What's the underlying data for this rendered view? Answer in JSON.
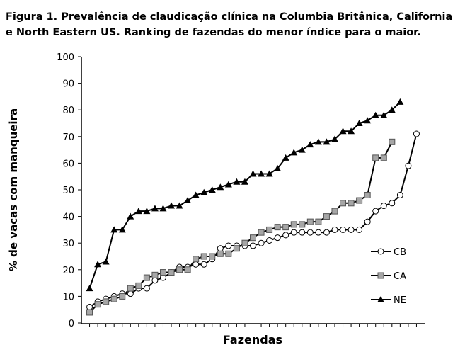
{
  "chart_data": {
    "type": "line",
    "title_lines": [
      "Figura 1. Prevalência de claudicação clínica na Columbia Britânica, California",
      "e North Eastern US. Ranking de fazendas do menor índice para o maior."
    ],
    "ylabel": "% de vacas com manqueira",
    "xlabel": "Fazendas",
    "x": [
      1,
      2,
      3,
      4,
      5,
      6,
      7,
      8,
      9,
      10,
      11,
      12,
      13,
      14,
      15,
      16,
      17,
      18,
      19,
      20,
      21,
      22,
      23,
      24,
      25,
      26,
      27,
      28,
      29,
      30,
      31,
      32,
      33,
      34,
      35,
      36,
      37,
      38,
      39,
      40,
      41
    ],
    "xlim": [
      0,
      42
    ],
    "ylim": [
      0,
      100
    ],
    "yticks": [
      0,
      10,
      20,
      30,
      40,
      50,
      60,
      70,
      80,
      90,
      100
    ],
    "series": [
      {
        "name": "CB",
        "color": "#ffffff",
        "marker": "circle",
        "values": [
          6,
          8,
          9,
          10,
          11,
          11,
          13,
          13,
          16,
          17,
          19,
          21,
          21,
          22,
          22,
          24,
          28,
          29,
          29,
          29,
          29,
          30,
          31,
          32,
          33,
          34,
          34,
          34,
          34,
          34,
          35,
          35,
          35,
          35,
          38,
          42,
          44,
          45,
          48,
          59,
          71
        ]
      },
      {
        "name": "CA",
        "color": "#a6a6a6",
        "marker": "square",
        "values": [
          4,
          7,
          8,
          9,
          10,
          13,
          14,
          17,
          18,
          19,
          19,
          20,
          20,
          24,
          25,
          25,
          26,
          26,
          28,
          30,
          32,
          34,
          35,
          36,
          36,
          37,
          37,
          38,
          38,
          40,
          42,
          45,
          45,
          46,
          48,
          62,
          62,
          68,
          null,
          null,
          null
        ]
      },
      {
        "name": "NE",
        "color": "#000000",
        "marker": "triangle",
        "values": [
          13,
          22,
          23,
          35,
          35,
          40,
          42,
          42,
          43,
          43,
          44,
          44,
          46,
          48,
          49,
          50,
          51,
          52,
          53,
          53,
          56,
          56,
          56,
          58,
          62,
          64,
          65,
          67,
          68,
          68,
          69,
          72,
          72,
          75,
          76,
          78,
          78,
          80,
          83,
          null,
          null
        ]
      }
    ]
  }
}
